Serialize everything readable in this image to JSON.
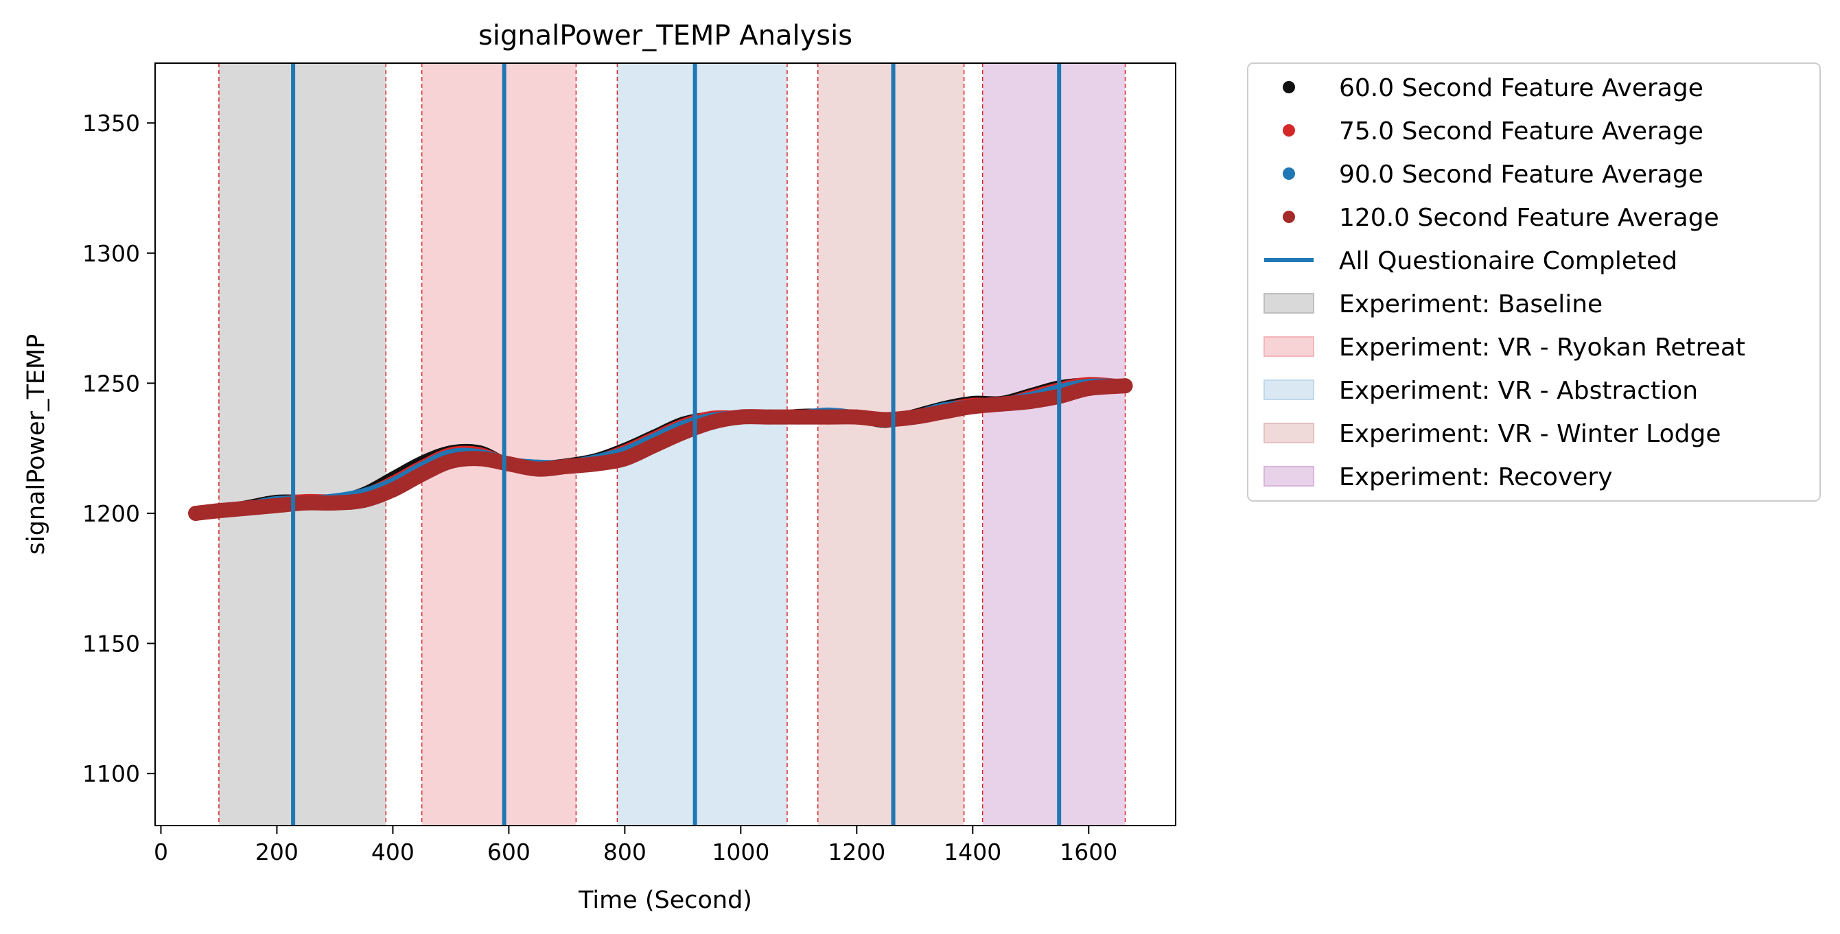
{
  "chart_data": {
    "type": "line",
    "title": "signalPower_TEMP Analysis",
    "xlabel": "Time (Second)",
    "ylabel": "signalPower_TEMP",
    "xlim": [
      -10,
      1750
    ],
    "ylim": [
      1080,
      1373
    ],
    "xticks": [
      0,
      200,
      400,
      600,
      800,
      1000,
      1200,
      1400,
      1600
    ],
    "yticks": [
      1100,
      1150,
      1200,
      1250,
      1300,
      1350
    ],
    "grid": false,
    "legend_position": "outside-right",
    "series": [
      {
        "name": "60.0 Second Feature Average",
        "color": "#111111",
        "marker": "dot",
        "x": [
          60,
          100,
          150,
          200,
          250,
          300,
          350,
          400,
          450,
          500,
          550,
          600,
          650,
          700,
          750,
          800,
          850,
          900,
          950,
          1000,
          1050,
          1100,
          1150,
          1200,
          1250,
          1300,
          1350,
          1400,
          1450,
          1500,
          1550,
          1600,
          1663
        ],
        "y": [
          1200,
          1201,
          1203,
          1205,
          1205,
          1205,
          1208,
          1214,
          1220,
          1224,
          1224,
          1219,
          1218,
          1219,
          1221,
          1225,
          1230,
          1235,
          1237,
          1237,
          1237,
          1238,
          1238,
          1237,
          1235,
          1238,
          1241,
          1243,
          1243,
          1246,
          1249,
          1250,
          1249
        ]
      },
      {
        "name": "75.0 Second Feature Average",
        "color": "#d62728",
        "marker": "dot",
        "x": [
          60,
          100,
          150,
          200,
          250,
          300,
          350,
          400,
          450,
          500,
          550,
          600,
          650,
          700,
          750,
          800,
          850,
          900,
          950,
          1000,
          1050,
          1100,
          1150,
          1200,
          1250,
          1300,
          1350,
          1400,
          1450,
          1500,
          1550,
          1600,
          1663
        ],
        "y": [
          1200,
          1201,
          1202,
          1204,
          1205,
          1205,
          1207,
          1212,
          1218,
          1223,
          1223,
          1219,
          1218,
          1218,
          1220,
          1224,
          1229,
          1234,
          1237,
          1237,
          1237,
          1237,
          1238,
          1237,
          1236,
          1237,
          1240,
          1242,
          1242,
          1245,
          1248,
          1250,
          1249
        ]
      },
      {
        "name": "90.0 Second Feature Average",
        "color": "#1f77b4",
        "marker": "dot",
        "x": [
          60,
          100,
          150,
          200,
          250,
          300,
          350,
          400,
          450,
          500,
          550,
          600,
          650,
          700,
          750,
          800,
          850,
          900,
          950,
          1000,
          1050,
          1100,
          1150,
          1200,
          1250,
          1300,
          1350,
          1400,
          1450,
          1500,
          1550,
          1600,
          1663
        ],
        "y": [
          1200,
          1201,
          1202,
          1204,
          1204,
          1205,
          1207,
          1211,
          1217,
          1222,
          1222,
          1219,
          1218,
          1218,
          1220,
          1223,
          1228,
          1233,
          1236,
          1237,
          1237,
          1237,
          1238,
          1237,
          1236,
          1237,
          1240,
          1241,
          1242,
          1244,
          1247,
          1249,
          1249
        ]
      },
      {
        "name": "120.0 Second Feature Average",
        "color": "#a52a2a",
        "marker": "dot",
        "x": [
          60,
          100,
          150,
          200,
          250,
          300,
          350,
          400,
          450,
          500,
          550,
          600,
          650,
          700,
          750,
          800,
          850,
          900,
          950,
          1000,
          1050,
          1100,
          1150,
          1200,
          1250,
          1300,
          1350,
          1400,
          1450,
          1500,
          1550,
          1600,
          1663
        ],
        "y": [
          1200,
          1201,
          1202,
          1203,
          1204,
          1204,
          1205,
          1209,
          1215,
          1220,
          1221,
          1219,
          1217,
          1218,
          1219,
          1221,
          1226,
          1231,
          1235,
          1237,
          1237,
          1237,
          1237,
          1237,
          1236,
          1237,
          1239,
          1241,
          1242,
          1243,
          1245,
          1248,
          1249
        ]
      }
    ],
    "vertical_lines": {
      "name": "All Questionaire Completed",
      "color": "#1f77b4",
      "x": [
        228,
        592,
        921,
        1263,
        1549
      ]
    },
    "regions": [
      {
        "name": "Experiment: Baseline",
        "color": "#bfbfbf",
        "spans": [
          [
            100,
            388
          ]
        ]
      },
      {
        "name": "Experiment: VR - Ryokan Retreat",
        "color": "#f4b6bb",
        "spans": [
          [
            450,
            716
          ]
        ]
      },
      {
        "name": "Experiment: VR - Abstraction",
        "color": "#c0d8eb",
        "spans": [
          [
            787,
            1080
          ]
        ]
      },
      {
        "name": "Experiment: VR - Winter Lodge",
        "color": "#e6c0c0",
        "spans": [
          [
            1133,
            1385
          ]
        ]
      },
      {
        "name": "Experiment: Recovery",
        "color": "#d8b4da",
        "spans": [
          [
            1417,
            1663
          ]
        ]
      }
    ],
    "region_boundary_color": "#d62728"
  }
}
